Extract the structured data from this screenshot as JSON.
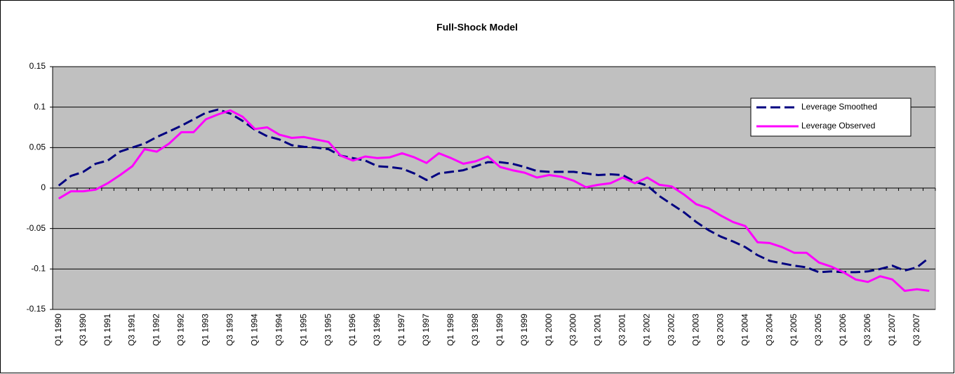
{
  "chart_data": {
    "type": "line",
    "title": "Full-Shock Model",
    "categories": [
      "Q1 1990",
      null,
      "Q3 1990",
      null,
      "Q1 1991",
      null,
      "Q3 1991",
      null,
      "Q1 1992",
      null,
      "Q3 1992",
      null,
      "Q1 1993",
      null,
      "Q3 1993",
      null,
      "Q1 1994",
      null,
      "Q3 1994",
      null,
      "Q1 1995",
      null,
      "Q3 1995",
      null,
      "Q1 1996",
      null,
      "Q3 1996",
      null,
      "Q1 1997",
      null,
      "Q3 1997",
      null,
      "Q1 1998",
      null,
      "Q3 1998",
      null,
      "Q1 1999",
      null,
      "Q3 1999",
      null,
      "Q1 2000",
      null,
      "Q3 2000",
      null,
      "Q1 2001",
      null,
      "Q3 2001",
      null,
      "Q1 2002",
      null,
      "Q3 2002",
      null,
      "Q1 2003",
      null,
      "Q3 2003",
      null,
      "Q1 2004",
      null,
      "Q3 2004",
      null,
      "Q1 2005",
      null,
      "Q3 2005",
      null,
      "Q1 2006",
      null,
      "Q3 2006",
      null,
      "Q1 2007",
      null,
      "Q3 2007",
      null
    ],
    "series": [
      {
        "name": "Leverage Smoothed",
        "color": "#000080",
        "line_style": "dashed",
        "values": [
          0.003,
          0.015,
          0.02,
          0.03,
          0.034,
          0.045,
          0.05,
          0.055,
          0.063,
          0.07,
          0.077,
          0.085,
          0.093,
          0.097,
          0.092,
          0.083,
          0.072,
          0.064,
          0.06,
          0.053,
          0.051,
          0.05,
          0.048,
          0.04,
          0.037,
          0.034,
          0.027,
          0.026,
          0.024,
          0.018,
          0.01,
          0.018,
          0.02,
          0.022,
          0.027,
          0.032,
          0.032,
          0.03,
          0.026,
          0.021,
          0.02,
          0.02,
          0.02,
          0.018,
          0.016,
          0.017,
          0.016,
          0.008,
          0.003,
          -0.01,
          -0.02,
          -0.03,
          -0.042,
          -0.052,
          -0.06,
          -0.066,
          -0.073,
          -0.083,
          -0.09,
          -0.093,
          -0.096,
          -0.098,
          -0.104,
          -0.103,
          -0.104,
          -0.104,
          -0.103,
          -0.1,
          -0.096,
          -0.102,
          -0.098,
          -0.086
        ]
      },
      {
        "name": "Leverage Observed",
        "color": "#ff00ff",
        "line_style": "solid",
        "values": [
          -0.013,
          -0.004,
          -0.004,
          -0.002,
          0.006,
          0.016,
          0.027,
          0.048,
          0.045,
          0.055,
          0.069,
          0.069,
          0.085,
          0.091,
          0.096,
          0.088,
          0.073,
          0.075,
          0.066,
          0.062,
          0.063,
          0.06,
          0.057,
          0.04,
          0.034,
          0.039,
          0.037,
          0.038,
          0.043,
          0.038,
          0.031,
          0.043,
          0.037,
          0.03,
          0.033,
          0.039,
          0.026,
          0.022,
          0.019,
          0.013,
          0.016,
          0.014,
          0.009,
          0.001,
          0.004,
          0.006,
          0.013,
          0.006,
          0.013,
          0.004,
          0.002,
          -0.008,
          -0.02,
          -0.025,
          -0.034,
          -0.042,
          -0.047,
          -0.067,
          -0.068,
          -0.073,
          -0.08,
          -0.08,
          -0.092,
          -0.097,
          -0.104,
          -0.113,
          -0.116,
          -0.109,
          -0.113,
          -0.127,
          -0.125,
          -0.127
        ]
      }
    ],
    "ylim": [
      -0.15,
      0.15
    ],
    "yticks": [
      0.15,
      0.1,
      0.05,
      0,
      -0.05,
      -0.1,
      -0.15
    ],
    "grid": true,
    "legend": "upper right"
  }
}
